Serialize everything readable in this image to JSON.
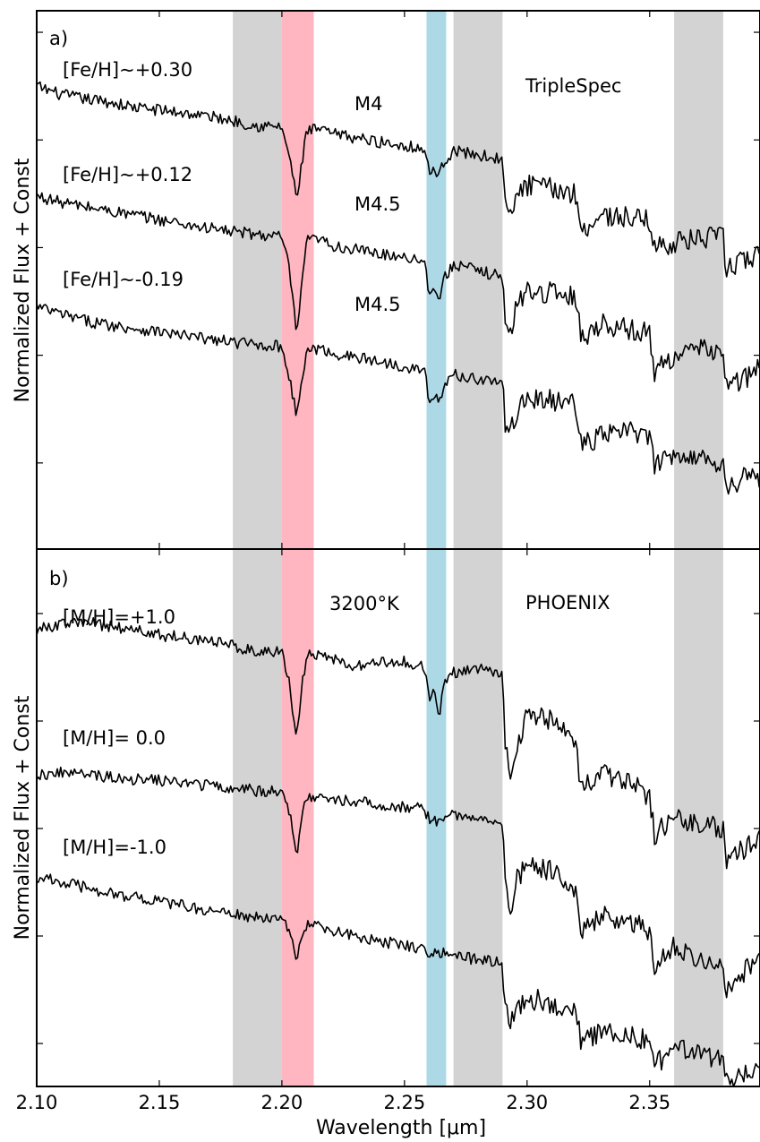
{
  "chart_data": {
    "x_axis": {
      "label": "Wavelength [μm]",
      "xlim": [
        2.1,
        2.395
      ],
      "ticks": [
        2.1,
        2.15,
        2.2,
        2.25,
        2.3,
        2.35
      ],
      "tick_labels": [
        "2.10",
        "2.15",
        "2.20",
        "2.25",
        "2.30",
        "2.35"
      ]
    },
    "bands": [
      {
        "x0": 2.18,
        "x1": 2.2,
        "color": "#d3d3d3"
      },
      {
        "x0": 2.2,
        "x1": 2.213,
        "color": "#ffb6c1"
      },
      {
        "x0": 2.259,
        "x1": 2.267,
        "color": "#add8e6"
      },
      {
        "x0": 2.27,
        "x1": 2.29,
        "color": "#d3d3d3"
      },
      {
        "x0": 2.36,
        "x1": 2.38,
        "color": "#d3d3d3"
      }
    ],
    "panels": [
      {
        "type": "line",
        "panel_label": "a)",
        "instrument_label": "TripleSpec",
        "ylabel": "Normalized Flux + Const",
        "ylim": [
          0,
          5
        ],
        "yticks": [
          0.8,
          1.8,
          2.8,
          3.8,
          4.8
        ],
        "series": [
          {
            "name": "[Fe/H]∼+0.30",
            "spt": "M4",
            "x": [
              2.1,
              2.11,
              2.12,
              2.13,
              2.14,
              2.15,
              2.16,
              2.17,
              2.18,
              2.19,
              2.2,
              2.203,
              2.206,
              2.208,
              2.21,
              2.215,
              2.22,
              2.23,
              2.24,
              2.25,
              2.258,
              2.26,
              2.262,
              2.264,
              2.266,
              2.27,
              2.28,
              2.29,
              2.291,
              2.293,
              2.296,
              2.3,
              2.31,
              2.32,
              2.322,
              2.33,
              2.34,
              2.35,
              2.352,
              2.36,
              2.37,
              2.38,
              2.381,
              2.39,
              2.395
            ],
            "y": [
              4.3,
              4.22,
              4.18,
              4.15,
              4.1,
              4.08,
              4.05,
              4.02,
              3.98,
              3.93,
              3.92,
              3.65,
              3.25,
              3.55,
              3.88,
              3.9,
              3.86,
              3.82,
              3.78,
              3.75,
              3.72,
              3.5,
              3.55,
              3.45,
              3.6,
              3.7,
              3.66,
              3.62,
              3.2,
              3.05,
              3.3,
              3.38,
              3.35,
              3.3,
              2.95,
              3.1,
              3.08,
              3.05,
              2.8,
              2.85,
              2.88,
              2.9,
              2.6,
              2.7,
              2.72
            ]
          },
          {
            "name": "[Fe/H]∼+0.12",
            "spt": "M4.5",
            "x": [
              2.1,
              2.11,
              2.12,
              2.13,
              2.14,
              2.15,
              2.16,
              2.17,
              2.18,
              2.19,
              2.2,
              2.203,
              2.206,
              2.208,
              2.21,
              2.215,
              2.22,
              2.23,
              2.24,
              2.25,
              2.258,
              2.26,
              2.262,
              2.264,
              2.266,
              2.27,
              2.28,
              2.29,
              2.291,
              2.293,
              2.296,
              2.3,
              2.31,
              2.32,
              2.322,
              2.33,
              2.34,
              2.35,
              2.352,
              2.36,
              2.37,
              2.38,
              2.381,
              2.39,
              2.395
            ],
            "y": [
              3.28,
              3.22,
              3.18,
              3.14,
              3.1,
              3.06,
              3.02,
              2.98,
              2.95,
              2.92,
              2.9,
              2.6,
              2.0,
              2.4,
              2.86,
              2.88,
              2.82,
              2.78,
              2.74,
              2.72,
              2.68,
              2.4,
              2.45,
              2.3,
              2.5,
              2.65,
              2.58,
              2.54,
              2.1,
              1.95,
              2.3,
              2.4,
              2.38,
              2.35,
              1.95,
              2.1,
              2.05,
              2.0,
              1.65,
              1.8,
              1.85,
              1.85,
              1.5,
              1.6,
              1.7
            ]
          },
          {
            "name": "[Fe/H]∼-0.19",
            "spt": "M4.5",
            "x": [
              2.1,
              2.11,
              2.12,
              2.13,
              2.14,
              2.15,
              2.16,
              2.17,
              2.18,
              2.19,
              2.2,
              2.203,
              2.206,
              2.208,
              2.21,
              2.215,
              2.22,
              2.23,
              2.24,
              2.25,
              2.258,
              2.26,
              2.262,
              2.264,
              2.266,
              2.27,
              2.28,
              2.29,
              2.291,
              2.293,
              2.296,
              2.3,
              2.31,
              2.32,
              2.322,
              2.33,
              2.34,
              2.35,
              2.352,
              2.36,
              2.37,
              2.38,
              2.381,
              2.39,
              2.395
            ],
            "y": [
              2.25,
              2.18,
              2.12,
              2.08,
              2.05,
              2.02,
              1.98,
              1.95,
              1.92,
              1.9,
              1.88,
              1.6,
              1.25,
              1.5,
              1.85,
              1.86,
              1.82,
              1.78,
              1.74,
              1.7,
              1.66,
              1.4,
              1.45,
              1.35,
              1.5,
              1.62,
              1.58,
              1.55,
              1.15,
              1.05,
              1.3,
              1.4,
              1.38,
              1.35,
              0.95,
              1.05,
              1.1,
              1.05,
              0.75,
              0.9,
              0.85,
              0.8,
              0.55,
              0.7,
              0.62
            ]
          }
        ]
      },
      {
        "type": "line",
        "panel_label": "b)",
        "instrument_label": "PHOENIX",
        "temp_label": "3200°K",
        "ylabel": "Normalized Flux + Const",
        "ylim": [
          0,
          5
        ],
        "yticks": [
          0.4,
          1.4,
          2.4,
          3.4,
          4.4
        ],
        "series": [
          {
            "name": "[M/H]=+1.0",
            "x": [
              2.1,
              2.11,
              2.12,
              2.13,
              2.14,
              2.15,
              2.16,
              2.17,
              2.18,
              2.19,
              2.2,
              2.203,
              2.206,
              2.208,
              2.21,
              2.215,
              2.22,
              2.23,
              2.24,
              2.25,
              2.258,
              2.26,
              2.262,
              2.264,
              2.266,
              2.27,
              2.28,
              2.29,
              2.291,
              2.293,
              2.296,
              2.3,
              2.31,
              2.32,
              2.322,
              2.33,
              2.34,
              2.35,
              2.352,
              2.36,
              2.37,
              2.38,
              2.381,
              2.39,
              2.395
            ],
            "y": [
              4.25,
              4.3,
              4.32,
              4.28,
              4.25,
              4.2,
              4.18,
              4.15,
              4.1,
              4.05,
              4.05,
              3.75,
              3.2,
              3.7,
              4.0,
              4.02,
              3.98,
              3.9,
              3.95,
              3.95,
              3.9,
              3.6,
              3.7,
              3.4,
              3.75,
              3.85,
              3.9,
              3.85,
              3.2,
              2.85,
              3.2,
              3.45,
              3.4,
              3.2,
              2.75,
              2.9,
              2.85,
              2.7,
              2.35,
              2.5,
              2.45,
              2.4,
              2.05,
              2.25,
              2.35
            ]
          },
          {
            "name": "[M/H]= 0.0",
            "x": [
              2.1,
              2.11,
              2.12,
              2.13,
              2.14,
              2.15,
              2.16,
              2.17,
              2.18,
              2.19,
              2.2,
              2.203,
              2.206,
              2.208,
              2.21,
              2.215,
              2.22,
              2.23,
              2.24,
              2.25,
              2.258,
              2.26,
              2.262,
              2.264,
              2.266,
              2.27,
              2.28,
              2.29,
              2.291,
              2.293,
              2.296,
              2.3,
              2.31,
              2.32,
              2.322,
              2.33,
              2.34,
              2.35,
              2.352,
              2.36,
              2.37,
              2.38,
              2.381,
              2.39,
              2.395
            ],
            "y": [
              2.9,
              2.92,
              2.9,
              2.88,
              2.86,
              2.85,
              2.82,
              2.8,
              2.78,
              2.75,
              2.74,
              2.55,
              2.15,
              2.5,
              2.7,
              2.7,
              2.68,
              2.65,
              2.62,
              2.6,
              2.58,
              2.48,
              2.5,
              2.45,
              2.52,
              2.52,
              2.5,
              2.48,
              1.85,
              1.6,
              1.95,
              2.05,
              2.0,
              1.85,
              1.4,
              1.6,
              1.55,
              1.45,
              1.1,
              1.3,
              1.2,
              1.15,
              0.9,
              1.1,
              1.25
            ]
          },
          {
            "name": "[M/H]=-1.0",
            "x": [
              2.1,
              2.11,
              2.12,
              2.13,
              2.14,
              2.15,
              2.16,
              2.17,
              2.18,
              2.19,
              2.2,
              2.203,
              2.206,
              2.208,
              2.21,
              2.215,
              2.22,
              2.23,
              2.24,
              2.25,
              2.258,
              2.26,
              2.262,
              2.264,
              2.266,
              2.27,
              2.28,
              2.29,
              2.291,
              2.293,
              2.296,
              2.3,
              2.31,
              2.32,
              2.322,
              2.33,
              2.34,
              2.35,
              2.352,
              2.36,
              2.37,
              2.38,
              2.381,
              2.39,
              2.395
            ],
            "y": [
              1.95,
              1.9,
              1.85,
              1.8,
              1.76,
              1.72,
              1.68,
              1.64,
              1.6,
              1.57,
              1.55,
              1.45,
              1.18,
              1.4,
              1.5,
              1.48,
              1.45,
              1.4,
              1.35,
              1.32,
              1.28,
              1.25,
              1.26,
              1.24,
              1.26,
              1.22,
              1.18,
              1.15,
              0.75,
              0.55,
              0.75,
              0.82,
              0.78,
              0.7,
              0.4,
              0.5,
              0.48,
              0.42,
              0.2,
              0.35,
              0.3,
              0.25,
              0.05,
              0.15,
              0.22
            ]
          }
        ]
      }
    ]
  }
}
